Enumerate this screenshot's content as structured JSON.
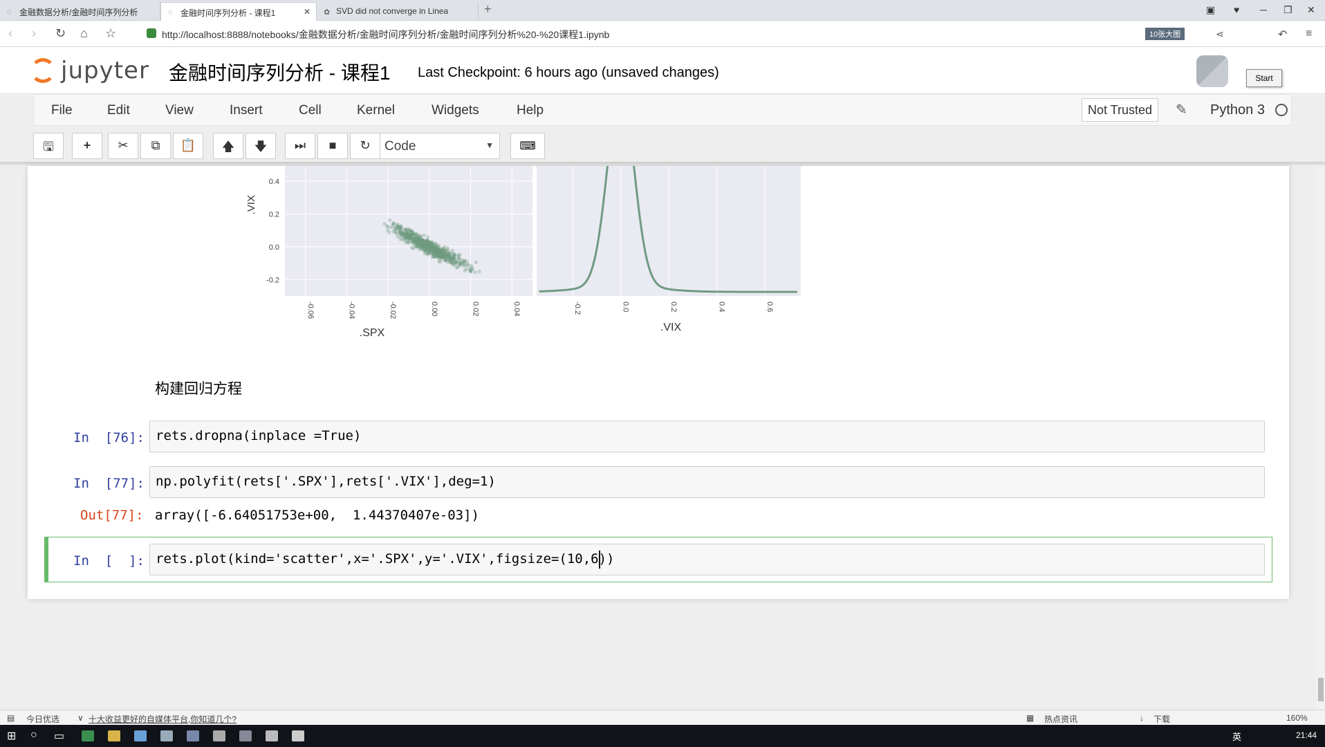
{
  "browser": {
    "tabs": [
      {
        "label": "金融数据分析/金融时间序列分析"
      },
      {
        "label": "金融时间序列分析 - 课程1"
      },
      {
        "label": "SVD did not converge in Linea"
      }
    ],
    "new_tab": "+",
    "url": "http://localhost:8888/notebooks/金融数据分析/金融时间序列分析/金融时间序列分析%20-%20课程1.ipynb",
    "zoom_badge": "10张大图"
  },
  "jupyter": {
    "logo_text": "jupyter",
    "title": "金融时间序列分析 - 课程1",
    "checkpoint": "Last Checkpoint: 6 hours ago (unsaved changes)",
    "start_label": "Start",
    "menu": [
      "File",
      "Edit",
      "View",
      "Insert",
      "Cell",
      "Kernel",
      "Widgets",
      "Help"
    ],
    "trust": "Not Trusted",
    "kernel": "Python 3",
    "cell_type": "Code"
  },
  "chart_data": [
    {
      "type": "scatter",
      "xlabel": ".SPX",
      "ylabel": ".VIX",
      "xticks": [
        "-0.06",
        "-0.04",
        "-0.02",
        "0.00",
        "0.02",
        "0.04"
      ],
      "yticks": [
        "0.4",
        "0.2",
        "0.0",
        "-0.2"
      ],
      "color": "#6f9a82"
    },
    {
      "type": "line",
      "xlabel": ".VIX",
      "xticks": [
        "-0.2",
        "0.0",
        "0.2",
        "0.4",
        "0.6"
      ],
      "color": "#6f9a82"
    }
  ],
  "cells": {
    "markdown": "构建回归方程",
    "c76": {
      "prompt": "In  [76]:",
      "code": "rets.dropna(inplace =True)"
    },
    "c77": {
      "prompt": "In  [77]:",
      "code": "np.polyfit(rets['.SPX'],rets['.VIX'],deg=1)",
      "out_prompt": "Out[77]:",
      "output": "array([-6.64051753e+00,  1.44370407e-03])"
    },
    "c_new": {
      "prompt": "In  [  ]:",
      "code": "rets.plot(kind='scatter',x='.SPX',y='.VIX',figsize=(10,6))"
    }
  },
  "status": {
    "left": "今日优选",
    "news": "十大收益更好的自媒体平台,你知道几个?",
    "hot": "热点资讯",
    "download": "下载",
    "zoom": "160%",
    "ime": "英",
    "time": "21:44"
  }
}
